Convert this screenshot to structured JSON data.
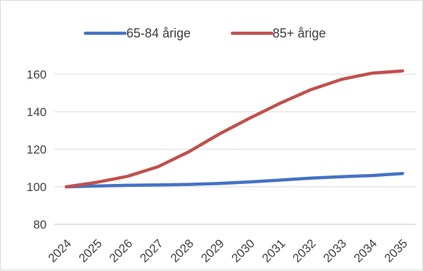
{
  "chart_data": {
    "type": "line",
    "title": "",
    "xlabel": "",
    "ylabel": "",
    "x": [
      "2024",
      "2025",
      "2026",
      "2027",
      "2028",
      "2029",
      "2030",
      "2031",
      "2032",
      "2033",
      "2034",
      "2035"
    ],
    "ylim": [
      80,
      160
    ],
    "yticks": [
      80,
      100,
      120,
      140,
      160
    ],
    "grid": "horizontal",
    "legend": "top",
    "series": [
      {
        "name": "65-84 årige",
        "color": "#4472c4",
        "values": [
          100,
          100.4,
          100.8,
          101.0,
          101.3,
          101.8,
          102.6,
          103.6,
          104.6,
          105.4,
          106.0,
          107.1
        ]
      },
      {
        "name": "85+ årige",
        "color": "#c0504d",
        "values": [
          100,
          102.4,
          105.6,
          110.7,
          118.6,
          128.1,
          136.6,
          144.6,
          151.8,
          157.3,
          160.6,
          161.8
        ]
      }
    ]
  }
}
